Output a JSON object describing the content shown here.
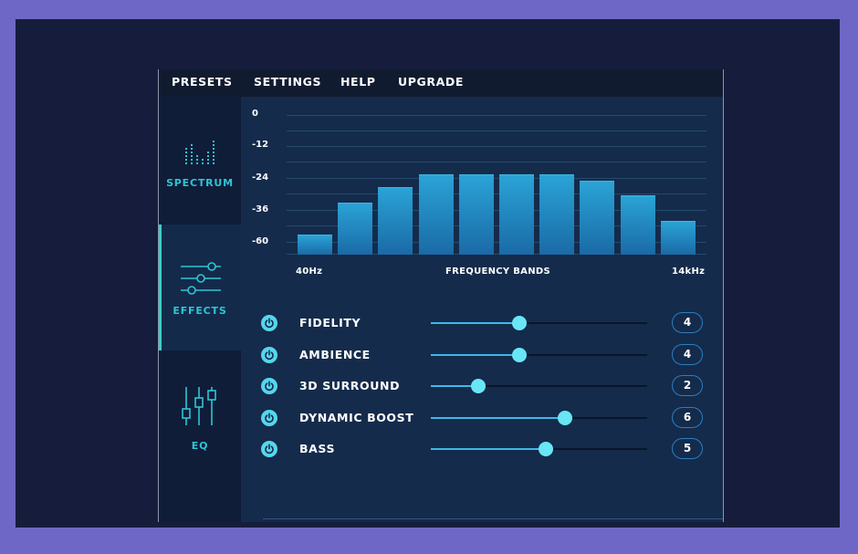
{
  "menu": {
    "items": [
      "PRESETS",
      "SETTINGS",
      "HELP",
      "UPGRADE"
    ]
  },
  "sidebar": {
    "items": [
      {
        "label": "SPECTRUM",
        "icon": "spectrum-icon",
        "active": false
      },
      {
        "label": "EFFECTS",
        "icon": "sliders-icon",
        "active": true
      },
      {
        "label": "EQ",
        "icon": "eq-icon",
        "active": false
      }
    ]
  },
  "spectrum": {
    "y_ticks": [
      "0",
      "-12",
      "-24",
      "-36",
      "-60"
    ],
    "x_start": "40Hz",
    "x_center": "FREQUENCY BANDS",
    "x_end": "14kHz",
    "band_levels": [
      0.14,
      0.38,
      0.49,
      0.59,
      0.59,
      0.59,
      0.59,
      0.54,
      0.43,
      0.24
    ]
  },
  "effects": [
    {
      "label": "FIDELITY",
      "value": "4",
      "level": 0.41
    },
    {
      "label": "AMBIENCE",
      "value": "4",
      "level": 0.41
    },
    {
      "label": "3D SURROUND",
      "value": "2",
      "level": 0.22
    },
    {
      "label": "DYNAMIC BOOST",
      "value": "6",
      "level": 0.62
    },
    {
      "label": "BASS",
      "value": "5",
      "level": 0.53
    }
  ],
  "colors": {
    "outer_background": "#6f67c6",
    "frame_background": "#161d3c",
    "panel_background": "#142b4b",
    "accent": "#2ec5d3",
    "active_indicator": "#33d3c4",
    "bar": "#2aa3d6",
    "thumb": "#69e6f5"
  }
}
